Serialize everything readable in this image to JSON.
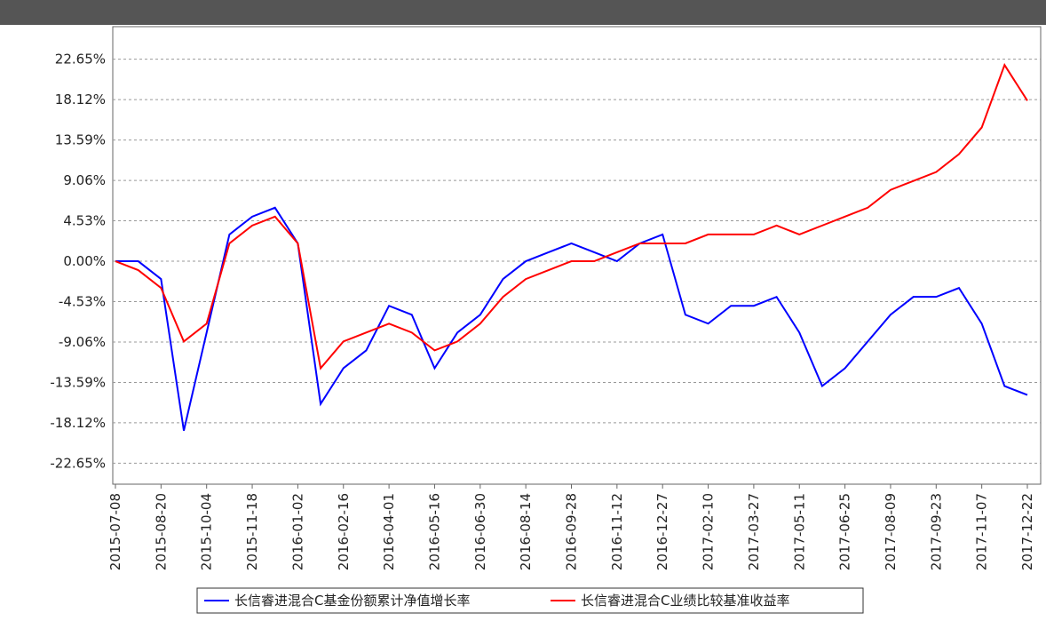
{
  "chart_data": {
    "type": "line",
    "categories": [
      "2015-07-08",
      null,
      "2015-08-20",
      null,
      "2015-10-04",
      null,
      "2015-11-18",
      null,
      "2016-01-02",
      null,
      "2016-02-16",
      null,
      "2016-04-01",
      null,
      "2016-05-16",
      null,
      "2016-06-30",
      null,
      "2016-08-14",
      null,
      "2016-09-28",
      null,
      "2016-11-12",
      null,
      "2016-12-27",
      null,
      "2017-02-10",
      null,
      "2017-03-27",
      null,
      "2017-05-11",
      null,
      "2017-06-25",
      null,
      "2017-08-09",
      null,
      "2017-09-23",
      null,
      "2017-11-07",
      null,
      "2017-12-22"
    ],
    "series": [
      {
        "name": "长信睿进混合C基金份额累计净值增长率",
        "color": "#0000ff",
        "values": [
          0,
          0,
          -2,
          -19,
          -8,
          3,
          5,
          6,
          2,
          -16,
          -12,
          -10,
          -5,
          -6,
          -12,
          -8,
          -6,
          -2,
          0,
          1,
          2,
          1,
          0,
          2,
          3,
          -6,
          -7,
          -5,
          -5,
          -4,
          -8,
          -14,
          -12,
          -9,
          -6,
          -4,
          -4,
          -3,
          -7,
          -14,
          -15
        ]
      },
      {
        "name": "长信睿进混合C业绩比较基准收益率",
        "color": "#ff0000",
        "values": [
          0,
          -1,
          -3,
          -9,
          -7,
          2,
          4,
          5,
          2,
          -12,
          -9,
          -8,
          -7,
          -8,
          -10,
          -9,
          -7,
          -4,
          -2,
          -1,
          0,
          0,
          1,
          2,
          2,
          2,
          3,
          3,
          3,
          4,
          3,
          4,
          5,
          6,
          8,
          9,
          10,
          12,
          15,
          22,
          18
        ]
      }
    ],
    "ylim": [
      -25,
      26.3
    ],
    "yticks": [
      {
        "value": -22.65,
        "label": "-22.65%"
      },
      {
        "value": -18.12,
        "label": "-18.12%"
      },
      {
        "value": -13.59,
        "label": "-13.59%"
      },
      {
        "value": -9.06,
        "label": "-9.06%"
      },
      {
        "value": -4.53,
        "label": "-4.53%"
      },
      {
        "value": 0,
        "label": "0.00%"
      },
      {
        "value": 4.53,
        "label": "4.53%"
      },
      {
        "value": 9.06,
        "label": "9.06%"
      },
      {
        "value": 13.59,
        "label": "13.59%"
      },
      {
        "value": 18.12,
        "label": "18.12%"
      },
      {
        "value": 22.65,
        "label": "22.65%"
      }
    ],
    "grid": true
  }
}
